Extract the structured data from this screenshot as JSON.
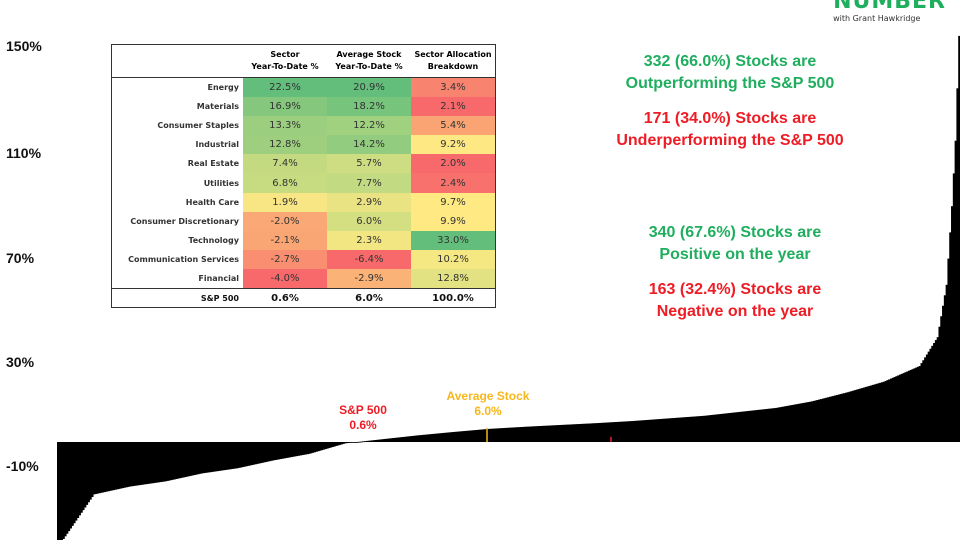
{
  "logo": {
    "title": "NUMBER",
    "subtitle": "with Grant Hawkridge"
  },
  "chart_data": {
    "type": "bar",
    "description_of_x": "stocks ranked by year-to-date return",
    "stock_count": 503,
    "sample_ranks": [
      0,
      20,
      40,
      60,
      80,
      100,
      120,
      140,
      160,
      180,
      200,
      220,
      240,
      260,
      280,
      300,
      320,
      340,
      360,
      380,
      400,
      420,
      440,
      460,
      480,
      490,
      495,
      498,
      500,
      502
    ],
    "sample_values": [
      -40,
      -20,
      -17,
      -15,
      -12,
      -10,
      -7,
      -4.5,
      -0.5,
      1,
      2.5,
      3.8,
      5,
      5.8,
      6.5,
      7.2,
      8,
      9,
      10,
      11.5,
      13,
      15.5,
      19,
      23,
      29,
      40,
      60,
      90,
      115,
      155
    ],
    "y_ticks": [
      "150%",
      "110%",
      "70%",
      "30%",
      "-10%"
    ],
    "y_tick_values": [
      150,
      110,
      70,
      30,
      -10
    ],
    "ylim": [
      -37,
      153
    ],
    "grid": false,
    "markers": {
      "sp500": {
        "label": "S&P 500",
        "value_label": "0.6%",
        "value": 0.6,
        "color": "#ee1c25"
      },
      "average": {
        "label": "Average Stock",
        "value_label": "6.0%",
        "value": 6.0,
        "color": "#f7b71d"
      }
    }
  },
  "table": {
    "headers": [
      [
        "",
        ""
      ],
      [
        "Sector",
        "Year-To-Date %"
      ],
      [
        "Average Stock",
        "Year-To-Date %"
      ],
      [
        "Sector Allocation",
        "Breakdown"
      ]
    ],
    "rows": [
      {
        "sector": "Energy",
        "ytd": "22.5%",
        "avg": "20.9%",
        "alloc": "3.4%",
        "c": [
          "#63be7b",
          "#63be7b",
          "#f8836f"
        ]
      },
      {
        "sector": "Materials",
        "ytd": "16.9%",
        "avg": "18.2%",
        "alloc": "2.1%",
        "c": [
          "#85c87d",
          "#77c47c",
          "#f8696b"
        ]
      },
      {
        "sector": "Consumer Staples",
        "ytd": "13.3%",
        "avg": "12.2%",
        "alloc": "5.4%",
        "c": [
          "#9bcf7f",
          "#a0d17f",
          "#f9a472"
        ]
      },
      {
        "sector": "Industrial",
        "ytd": "12.8%",
        "avg": "14.2%",
        "alloc": "9.2%",
        "c": [
          "#9ecf7f",
          "#92cc7e",
          "#fde883"
        ]
      },
      {
        "sector": "Real Estate",
        "ytd": "7.4%",
        "avg": "5.7%",
        "alloc": "2.0%",
        "c": [
          "#c3da81",
          "#cfdd82",
          "#f8696b"
        ]
      },
      {
        "sector": "Utilities",
        "ytd": "6.8%",
        "avg": "7.7%",
        "alloc": "2.4%",
        "c": [
          "#c7db81",
          "#c2da81",
          "#f8716c"
        ]
      },
      {
        "sector": "Health Care",
        "ytd": "1.9%",
        "avg": "2.9%",
        "alloc": "9.7%",
        "c": [
          "#f7e683",
          "#eae383",
          "#fee983"
        ]
      },
      {
        "sector": "Consumer Discretionary",
        "ytd": "-2.0%",
        "avg": "6.0%",
        "alloc": "9.9%",
        "c": [
          "#faa875",
          "#d4df82",
          "#fee983"
        ]
      },
      {
        "sector": "Technology",
        "ytd": "-2.1%",
        "avg": "2.3%",
        "alloc": "33.0%",
        "c": [
          "#faa674",
          "#f2e683",
          "#63be7b"
        ]
      },
      {
        "sector": "Communication Services",
        "ytd": "-2.7%",
        "avg": "-6.4%",
        "alloc": "10.2%",
        "c": [
          "#f98f70",
          "#f8696b",
          "#f5e883"
        ]
      },
      {
        "sector": "Financial",
        "ytd": "-4.0%",
        "avg": "-2.9%",
        "alloc": "12.8%",
        "c": [
          "#f8696b",
          "#fbb276",
          "#e2e283"
        ]
      }
    ],
    "footer": {
      "sector": "S&P 500",
      "ytd": "0.6%",
      "avg": "6.0%",
      "alloc": "100.0%"
    }
  },
  "annotations": [
    {
      "l1": "332 (66.0%) Stocks are",
      "l2": "Outperforming the S&P 500",
      "tone": "g"
    },
    {
      "l1": "171 (34.0%) Stocks are",
      "l2": "Underperforming the S&P 500",
      "tone": "r"
    },
    {
      "l1": "340 (67.6%) Stocks are",
      "l2": "Positive on the year",
      "tone": "g"
    },
    {
      "l1": "163 (32.4%) Stocks are",
      "l2": "Negative on the year",
      "tone": "r"
    }
  ]
}
